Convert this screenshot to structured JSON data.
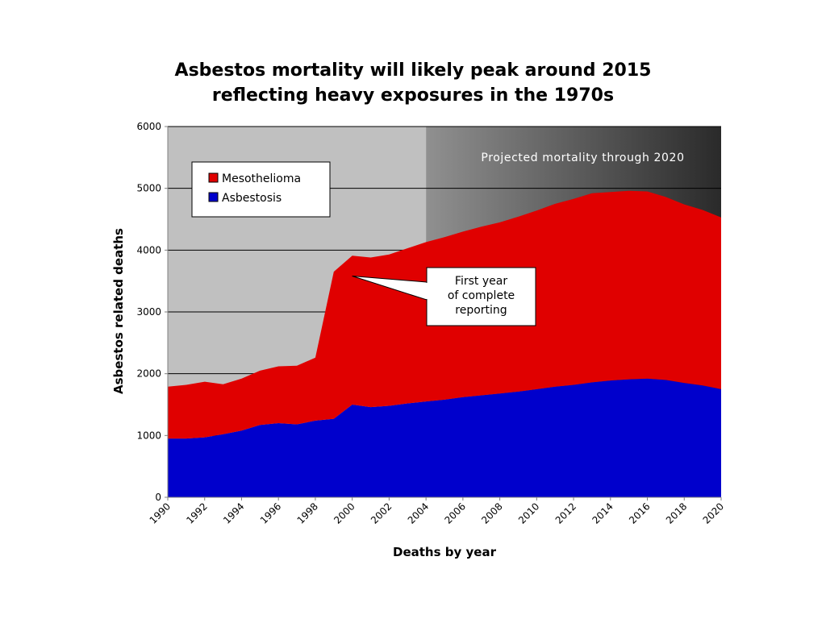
{
  "title_line1": "Asbestos mortality will likely peak around 2015",
  "title_line2": "reflecting heavy exposures in the 1970s",
  "chart_data": {
    "type": "area",
    "stacked": true,
    "xlabel": "Deaths by year",
    "ylabel": "Asbestos related deaths",
    "xlim": [
      1990,
      2020
    ],
    "ylim": [
      0,
      6000
    ],
    "y_ticks": [
      0,
      1000,
      2000,
      3000,
      4000,
      5000,
      6000
    ],
    "x_ticks": [
      1990,
      1992,
      1994,
      1996,
      1998,
      2000,
      2002,
      2004,
      2006,
      2008,
      2010,
      2012,
      2014,
      2016,
      2018,
      2020
    ],
    "grid": "horizontal",
    "legend_position": "top-left",
    "x": [
      1990,
      1991,
      1992,
      1993,
      1994,
      1995,
      1996,
      1997,
      1998,
      1999,
      2000,
      2001,
      2002,
      2003,
      2004,
      2005,
      2006,
      2007,
      2008,
      2009,
      2010,
      2011,
      2012,
      2013,
      2014,
      2015,
      2016,
      2017,
      2018,
      2019,
      2020
    ],
    "series": [
      {
        "name": "Asbestosis",
        "color": "#0000cc",
        "values": [
          950,
          950,
          970,
          1020,
          1080,
          1170,
          1200,
          1180,
          1240,
          1270,
          1500,
          1460,
          1480,
          1520,
          1550,
          1580,
          1620,
          1650,
          1680,
          1710,
          1750,
          1790,
          1820,
          1860,
          1890,
          1910,
          1920,
          1900,
          1850,
          1810,
          1750
        ]
      },
      {
        "name": "Mesothelioma",
        "color": "#e00000",
        "values": [
          840,
          870,
          900,
          810,
          840,
          880,
          920,
          950,
          1020,
          2380,
          2410,
          2420,
          2450,
          2510,
          2580,
          2630,
          2680,
          2730,
          2770,
          2830,
          2890,
          2960,
          3010,
          3060,
          3050,
          3050,
          3030,
          2960,
          2890,
          2840,
          2780
        ]
      }
    ],
    "total_values": [
      1790,
      1820,
      1870,
      1830,
      1920,
      2050,
      2120,
      2130,
      2260,
      3650,
      3910,
      3880,
      3930,
      4030,
      4130,
      4210,
      4300,
      4380,
      4450,
      4540,
      4640,
      4750,
      4830,
      4920,
      4940,
      4960,
      4950,
      4860,
      4740,
      4650,
      4530
    ],
    "projection": {
      "start_year": 2004,
      "label": "Projected mortality through 2020"
    },
    "annotation": {
      "lines": [
        "First year",
        "of complete",
        "reporting"
      ],
      "points_to_year": 2000,
      "points_to_value": 3580
    },
    "colors": {
      "historical_background": "#c0c0c0",
      "projection_dark": "#2a2a2a",
      "projection_light": "#909090",
      "gridline": "#000000"
    }
  }
}
